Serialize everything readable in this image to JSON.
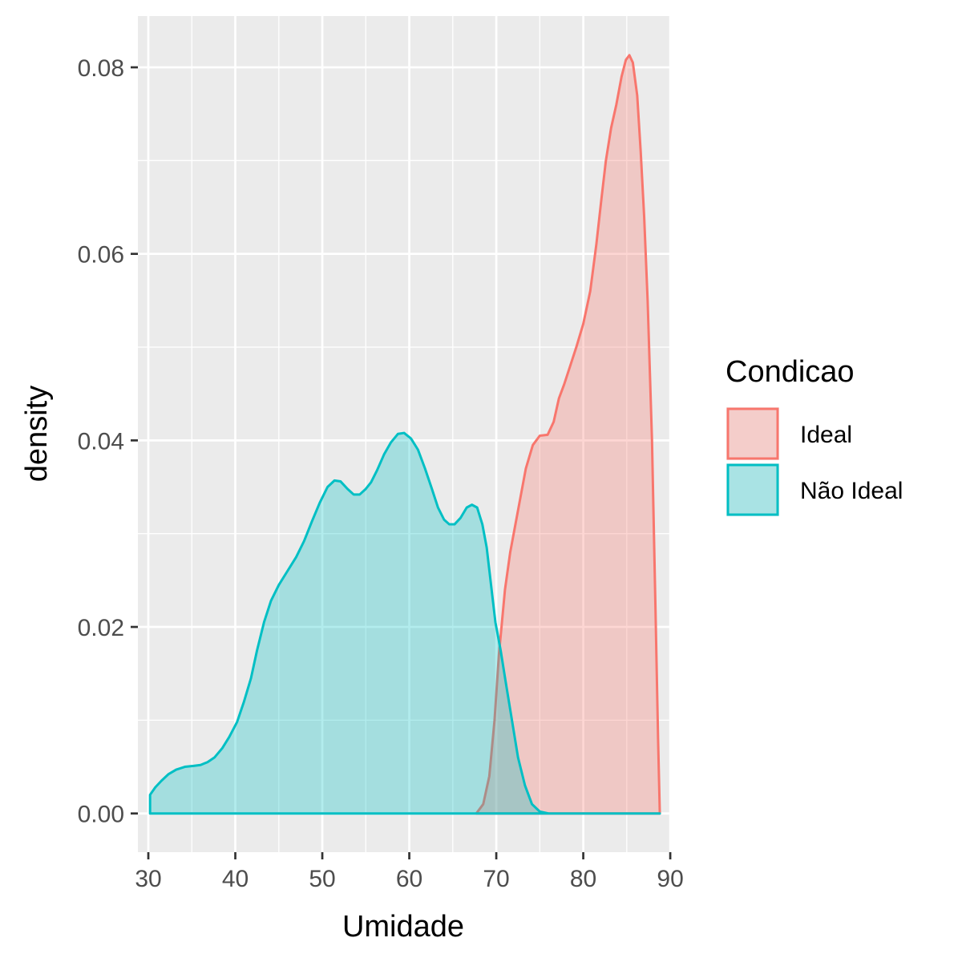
{
  "chart_data": {
    "type": "area",
    "subtype": "density",
    "xlabel": "Umidade",
    "ylabel": "density",
    "xlim": [
      28.8,
      89.9
    ],
    "ylim": [
      -0.00415,
      0.0855
    ],
    "x_ticks": [
      30,
      40,
      50,
      60,
      70,
      80,
      90
    ],
    "x_tick_labels": [
      "30",
      "40",
      "50",
      "60",
      "70",
      "80",
      "90"
    ],
    "y_ticks": [
      0,
      0.02,
      0.04,
      0.06,
      0.08
    ],
    "y_tick_labels": [
      "0.00",
      "0.02",
      "0.04",
      "0.06",
      "0.08"
    ],
    "grid": true,
    "legend": {
      "title": "Condicao",
      "position": "right"
    },
    "series": [
      {
        "name": "Ideal",
        "color": "#F8766D",
        "fill_opacity": 0.3,
        "points": [
          [
            67.7,
            0.0
          ],
          [
            68.5,
            0.001
          ],
          [
            69.2,
            0.004
          ],
          [
            69.8,
            0.01
          ],
          [
            70.3,
            0.017
          ],
          [
            71.0,
            0.024
          ],
          [
            71.6,
            0.028
          ],
          [
            72.2,
            0.031
          ],
          [
            72.8,
            0.034
          ],
          [
            73.4,
            0.037
          ],
          [
            74.2,
            0.0395
          ],
          [
            75.0,
            0.0405
          ],
          [
            75.9,
            0.0406
          ],
          [
            76.6,
            0.042
          ],
          [
            77.2,
            0.0445
          ],
          [
            77.8,
            0.046
          ],
          [
            78.5,
            0.048
          ],
          [
            79.2,
            0.05
          ],
          [
            80.0,
            0.0525
          ],
          [
            80.8,
            0.056
          ],
          [
            81.5,
            0.061
          ],
          [
            82.1,
            0.066
          ],
          [
            82.6,
            0.07
          ],
          [
            83.2,
            0.0735
          ],
          [
            83.8,
            0.076
          ],
          [
            84.4,
            0.079
          ],
          [
            84.9,
            0.0808
          ],
          [
            85.3,
            0.0813
          ],
          [
            85.7,
            0.0805
          ],
          [
            86.2,
            0.077
          ],
          [
            86.6,
            0.071
          ],
          [
            87.0,
            0.064
          ],
          [
            87.4,
            0.055
          ],
          [
            87.9,
            0.04
          ],
          [
            88.3,
            0.022
          ],
          [
            88.6,
            0.008
          ],
          [
            88.8,
            0.0
          ]
        ]
      },
      {
        "name": "Não Ideal",
        "color": "#00BFC4",
        "fill_opacity": 0.3,
        "points": [
          [
            30.2,
            0.002
          ],
          [
            30.8,
            0.0028
          ],
          [
            31.5,
            0.0035
          ],
          [
            32.3,
            0.0042
          ],
          [
            33.2,
            0.0047
          ],
          [
            34.2,
            0.005
          ],
          [
            35.2,
            0.0051
          ],
          [
            36.0,
            0.0052
          ],
          [
            36.8,
            0.0055
          ],
          [
            37.6,
            0.006
          ],
          [
            38.5,
            0.007
          ],
          [
            39.3,
            0.0082
          ],
          [
            40.2,
            0.0098
          ],
          [
            41.0,
            0.012
          ],
          [
            41.8,
            0.0145
          ],
          [
            42.5,
            0.0175
          ],
          [
            43.3,
            0.0205
          ],
          [
            44.1,
            0.0228
          ],
          [
            45.0,
            0.0245
          ],
          [
            46.0,
            0.026
          ],
          [
            47.0,
            0.0275
          ],
          [
            47.9,
            0.0292
          ],
          [
            48.8,
            0.0313
          ],
          [
            49.7,
            0.0333
          ],
          [
            50.6,
            0.035
          ],
          [
            51.4,
            0.0357
          ],
          [
            52.1,
            0.0356
          ],
          [
            52.9,
            0.0348
          ],
          [
            53.6,
            0.0342
          ],
          [
            54.3,
            0.0342
          ],
          [
            55.0,
            0.0348
          ],
          [
            55.6,
            0.0355
          ],
          [
            56.3,
            0.0368
          ],
          [
            57.1,
            0.0385
          ],
          [
            57.9,
            0.0398
          ],
          [
            58.7,
            0.0407
          ],
          [
            59.4,
            0.0408
          ],
          [
            60.2,
            0.0402
          ],
          [
            61.0,
            0.039
          ],
          [
            61.8,
            0.037
          ],
          [
            62.6,
            0.0348
          ],
          [
            63.3,
            0.0328
          ],
          [
            64.0,
            0.0315
          ],
          [
            64.6,
            0.031
          ],
          [
            65.2,
            0.031
          ],
          [
            65.9,
            0.0317
          ],
          [
            66.6,
            0.0328
          ],
          [
            67.2,
            0.0331
          ],
          [
            67.8,
            0.0328
          ],
          [
            68.4,
            0.031
          ],
          [
            68.9,
            0.0285
          ],
          [
            69.4,
            0.0245
          ],
          [
            69.9,
            0.0205
          ],
          [
            70.5,
            0.0175
          ],
          [
            71.1,
            0.014
          ],
          [
            71.8,
            0.01
          ],
          [
            72.5,
            0.006
          ],
          [
            73.3,
            0.003
          ],
          [
            74.1,
            0.001
          ],
          [
            75.0,
            0.0002
          ],
          [
            76.0,
            0.0
          ],
          [
            88.8,
            0.0
          ]
        ]
      }
    ]
  }
}
